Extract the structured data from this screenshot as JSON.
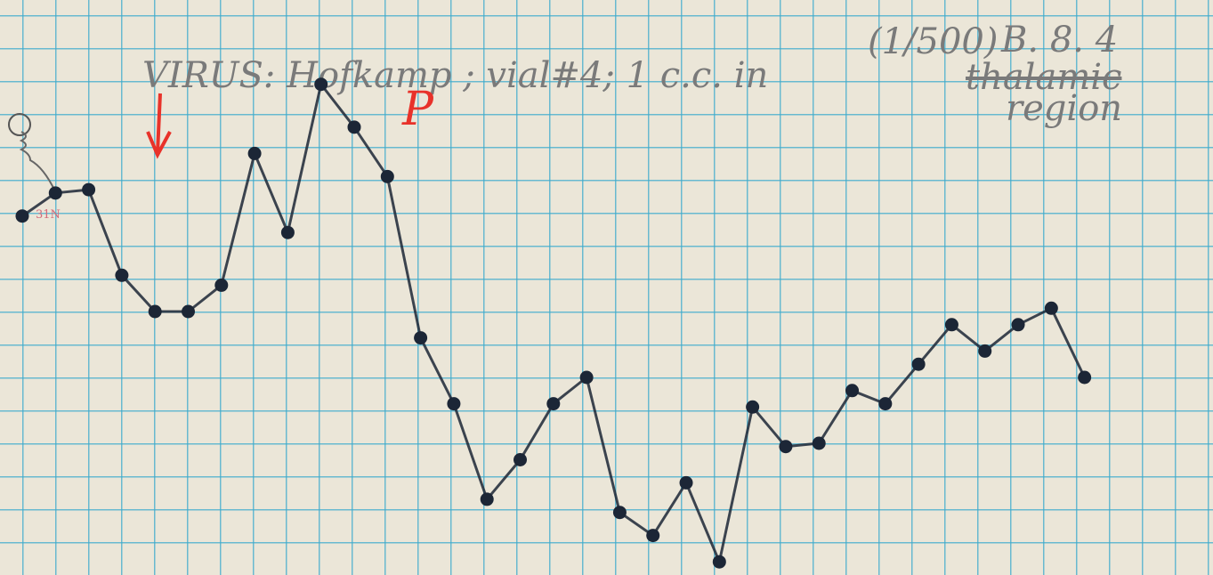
{
  "chart_data": {
    "type": "line",
    "annotations": [
      "VIRUS: Hofkamp ; vial#4; 1 c.c. in",
      "thalamic",
      "region",
      "(1/500)",
      "B. 8. 4",
      "P",
      "31N"
    ],
    "x": [
      0,
      1,
      2,
      3,
      4,
      5,
      6,
      7,
      8,
      9,
      10,
      11,
      12,
      13,
      14,
      15,
      16,
      17,
      18,
      19,
      20,
      21,
      22,
      23,
      24,
      25,
      26,
      27,
      28,
      29,
      30,
      31,
      32
    ],
    "series": [
      {
        "color": "#1c2636",
        "values": [
          10.9,
          11.6,
          11.7,
          9.1,
          8.0,
          8.0,
          8.8,
          12.8,
          10.4,
          14.9,
          13.6,
          12.1,
          7.2,
          5.2,
          2.3,
          3.5,
          5.2,
          6.0,
          1.9,
          1.2,
          2.8,
          0.4,
          5.1,
          3.9,
          4.0,
          5.6,
          5.2,
          6.4,
          7.6,
          6.8,
          7.6,
          8.1,
          6.0
        ]
      }
    ],
    "xlim": [
      -0.67,
      35.87
    ],
    "ylim": [
      0,
      17.46
    ]
  }
}
